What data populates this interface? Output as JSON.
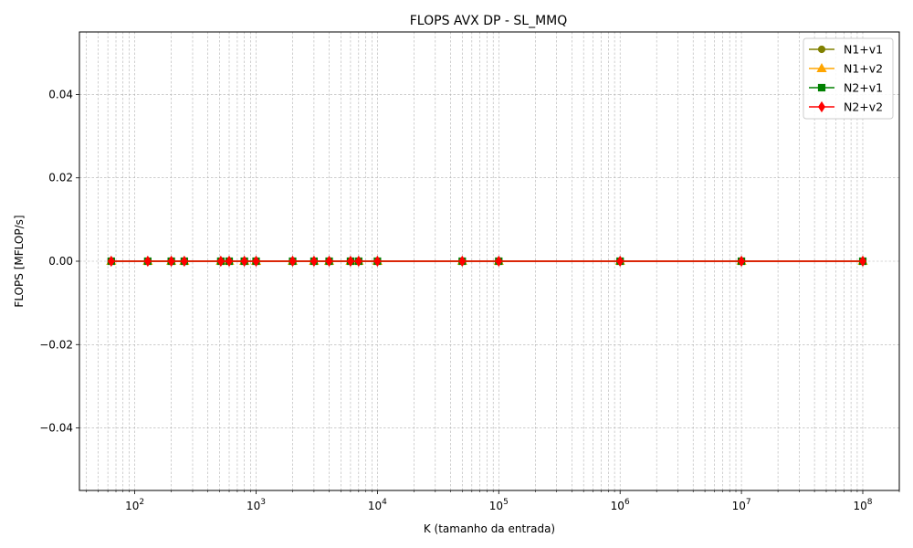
{
  "chart_data": {
    "type": "line",
    "title": "FLOPS AVX DP - SL_MMQ",
    "xlabel": "K (tamanho da entrada)",
    "ylabel": "FLOPS [MFLOP/s]",
    "xscale": "log",
    "xlim": [
      35,
      200000000
    ],
    "ylim": [
      -0.055,
      0.055
    ],
    "grid": true,
    "legend_position": "top-right",
    "x": [
      64,
      128,
      200,
      256,
      512,
      600,
      800,
      1000,
      2000,
      3000,
      4000,
      6000,
      7000,
      10000,
      50000,
      100000,
      1000000,
      10000000,
      100000000
    ],
    "x_ticks": [
      {
        "value": 100,
        "base": "10",
        "exp": "2"
      },
      {
        "value": 1000,
        "base": "10",
        "exp": "3"
      },
      {
        "value": 10000,
        "base": "10",
        "exp": "4"
      },
      {
        "value": 100000,
        "base": "10",
        "exp": "5"
      },
      {
        "value": 1000000,
        "base": "10",
        "exp": "6"
      },
      {
        "value": 10000000,
        "base": "10",
        "exp": "7"
      },
      {
        "value": 100000000,
        "base": "10",
        "exp": "8"
      }
    ],
    "y_ticks": [
      {
        "value": 0.04,
        "label": "0.04"
      },
      {
        "value": 0.02,
        "label": "0.02"
      },
      {
        "value": 0.0,
        "label": "0.00"
      },
      {
        "value": -0.02,
        "label": "−0.02"
      },
      {
        "value": -0.04,
        "label": "−0.04"
      }
    ],
    "series": [
      {
        "name": "N1+v1",
        "color": "#808000",
        "marker": "circle",
        "values": [
          0,
          0,
          0,
          0,
          0,
          0,
          0,
          0,
          0,
          0,
          0,
          0,
          0,
          0,
          0,
          0,
          0,
          0,
          0
        ]
      },
      {
        "name": "N1+v2",
        "color": "#ffa500",
        "marker": "triangle",
        "values": [
          0,
          0,
          0,
          0,
          0,
          0,
          0,
          0,
          0,
          0,
          0,
          0,
          0,
          0,
          0,
          0,
          0,
          0,
          0
        ]
      },
      {
        "name": "N2+v1",
        "color": "#008000",
        "marker": "square",
        "values": [
          0,
          0,
          0,
          0,
          0,
          0,
          0,
          0,
          0,
          0,
          0,
          0,
          0,
          0,
          0,
          0,
          0,
          0,
          0
        ]
      },
      {
        "name": "N2+v2",
        "color": "#ff0000",
        "marker": "diamond",
        "values": [
          0,
          0,
          0,
          0,
          0,
          0,
          0,
          0,
          0,
          0,
          0,
          0,
          0,
          0,
          0,
          0,
          0,
          0,
          0
        ]
      }
    ]
  }
}
